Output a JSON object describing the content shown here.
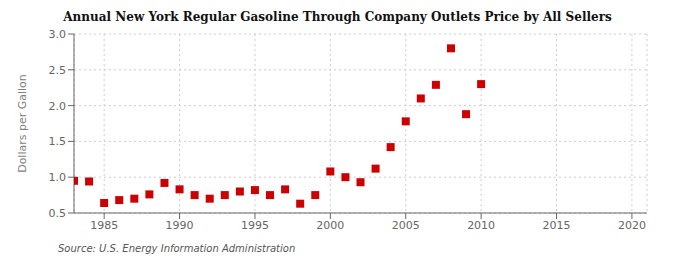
{
  "chart_data": {
    "type": "scatter",
    "title": "Annual New York Regular Gasoline Through Company Outlets Price by All Sellers",
    "y_label": "Dollars per Gallon",
    "annotation": "Source: U.S. Energy Information Administration",
    "x": [
      1983,
      1984,
      1985,
      1986,
      1987,
      1988,
      1989,
      1990,
      1991,
      1992,
      1993,
      1994,
      1995,
      1996,
      1997,
      1998,
      1999,
      2000,
      2001,
      2002,
      2003,
      2004,
      2005,
      2006,
      2007,
      2008,
      2009,
      2010
    ],
    "values": [
      0.95,
      0.94,
      0.64,
      0.68,
      0.7,
      0.76,
      0.92,
      0.83,
      0.75,
      0.7,
      0.75,
      0.8,
      0.82,
      0.75,
      0.83,
      0.63,
      0.75,
      1.08,
      1.0,
      0.93,
      1.12,
      1.42,
      1.78,
      2.1,
      2.29,
      2.8,
      1.88,
      2.3
    ],
    "color": "#cc0000",
    "marker": "square",
    "xlim": [
      1983,
      2021
    ],
    "ylim": [
      0.5,
      3.0
    ],
    "xticks": [
      1985,
      1990,
      1995,
      2000,
      2005,
      2010,
      2015,
      2020
    ],
    "yticks": [
      0.5,
      {
        "value": 1.0,
        "label": "1.0"
      },
      1.5,
      {
        "value": 2.0,
        "label": "2.0"
      },
      2.5,
      {
        "value": 3.0,
        "label": "3.0"
      }
    ],
    "grid": true
  }
}
